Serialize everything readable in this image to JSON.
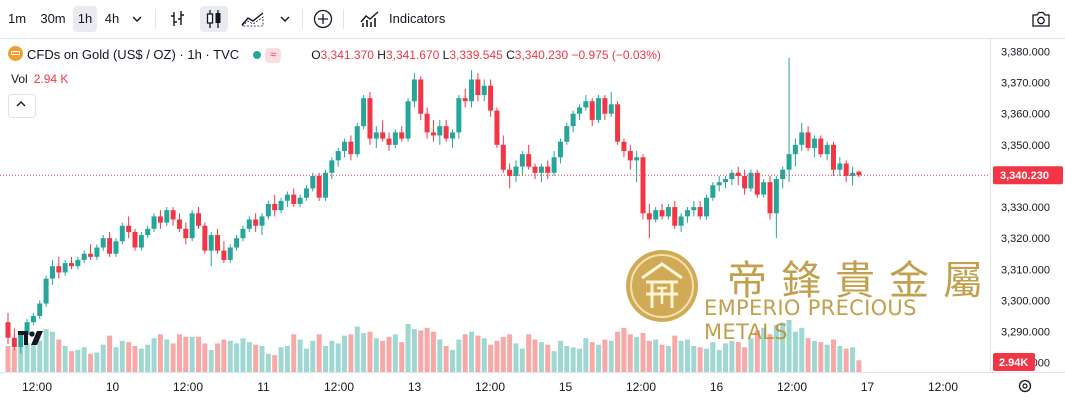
{
  "toolbar": {
    "intervals": [
      "1m",
      "30m",
      "1h",
      "4h"
    ],
    "active_interval": "1h",
    "indicators_label": "Indicators",
    "icons": [
      "chevron-down-icon",
      "bar-style-icon",
      "candle-style-icon",
      "area-style-icon",
      "add-compare-icon",
      "indicators-icon",
      "camera-icon"
    ]
  },
  "legend": {
    "symbol": "CFDs on Gold (US$ / OZ) · 1h · TVC",
    "badge": "≈",
    "o_label": "O",
    "o": "3,341.370",
    "h_label": "H",
    "h": "3,341.670",
    "l_label": "L",
    "l": "3,339.545",
    "c_label": "C",
    "c": "3,340.230",
    "change": "−0.975 (−0.03%)",
    "vol_label": "Vol",
    "vol_value": "2.94 K"
  },
  "price_axis": {
    "ticks": [
      "3,380.000",
      "3,370.000",
      "3,360.000",
      "3,350.000",
      "3,340.000",
      "3,330.000",
      "3,320.000",
      "3,310.000",
      "3,300.000",
      "3,290.000",
      "3,280.000"
    ],
    "last_price_label": "3,340.230",
    "volume_label": "2.94K"
  },
  "time_axis": {
    "labels": [
      "12:00",
      "10",
      "12:00",
      "11",
      "12:00",
      "13",
      "12:00",
      "15",
      "12:00",
      "16",
      "12:00",
      "17",
      "12:00"
    ]
  },
  "watermark": {
    "chinese": "帝鋒貴金屬",
    "english": "EMPERIO PRECIOUS METALS"
  },
  "colors": {
    "up": "#26a69a",
    "down": "#f23645",
    "up_volume": "#9fd8d2",
    "down_volume": "#f7a9a7",
    "gold": "#b8902e"
  },
  "chart_data": {
    "type": "candlestick",
    "title": "CFDs on Gold (US$ / OZ) · 1h · TVC",
    "ylim": [
      3277,
      3384
    ],
    "last_price": 3340.23,
    "x_tick_labels": [
      "12:00",
      "10",
      "12:00",
      "11",
      "12:00",
      "13",
      "12:00",
      "15",
      "12:00",
      "16",
      "12:00",
      "17",
      "12:00"
    ],
    "candles": [
      [
        3293,
        3296,
        3286,
        3288,
        20
      ],
      [
        3288,
        3291,
        3284,
        3285,
        18
      ],
      [
        3285,
        3290,
        3283,
        3289,
        19
      ],
      [
        3289,
        3294,
        3288,
        3293,
        22
      ],
      [
        3293,
        3296,
        3292,
        3295,
        21
      ],
      [
        3295,
        3300,
        3294,
        3299,
        24
      ],
      [
        3299,
        3308,
        3298,
        3307,
        33
      ],
      [
        3307,
        3313,
        3305,
        3311,
        31
      ],
      [
        3311,
        3314,
        3307,
        3309,
        25
      ],
      [
        3309,
        3313,
        3308,
        3312,
        20
      ],
      [
        3312,
        3314,
        3310,
        3311,
        16
      ],
      [
        3311,
        3314,
        3310,
        3313,
        17
      ],
      [
        3313,
        3316,
        3312,
        3315,
        19
      ],
      [
        3315,
        3318,
        3313,
        3314,
        14
      ],
      [
        3314,
        3318,
        3313,
        3317,
        15
      ],
      [
        3317,
        3321,
        3316,
        3320,
        21
      ],
      [
        3320,
        3322,
        3314,
        3315,
        28
      ],
      [
        3315,
        3320,
        3314,
        3319,
        19
      ],
      [
        3319,
        3325,
        3318,
        3324,
        24
      ],
      [
        3324,
        3327,
        3320,
        3322,
        23
      ],
      [
        3322,
        3323,
        3316,
        3317,
        20
      ],
      [
        3317,
        3322,
        3316,
        3321,
        18
      ],
      [
        3321,
        3324,
        3320,
        3323,
        21
      ],
      [
        3323,
        3328,
        3322,
        3327,
        26
      ],
      [
        3327,
        3329,
        3323,
        3325,
        29
      ],
      [
        3325,
        3330,
        3324,
        3329,
        25
      ],
      [
        3329,
        3330,
        3324,
        3326,
        22
      ],
      [
        3326,
        3328,
        3322,
        3323,
        29
      ],
      [
        3323,
        3325,
        3318,
        3320,
        27
      ],
      [
        3320,
        3329,
        3319,
        3328,
        27
      ],
      [
        3328,
        3330,
        3323,
        3324,
        27
      ],
      [
        3324,
        3325,
        3315,
        3316,
        22
      ],
      [
        3316,
        3322,
        3311,
        3321,
        17
      ],
      [
        3321,
        3323,
        3315,
        3316,
        22
      ],
      [
        3316,
        3319,
        3312,
        3313,
        25
      ],
      [
        3313,
        3318,
        3312,
        3317,
        24
      ],
      [
        3317,
        3321,
        3316,
        3320,
        22
      ],
      [
        3320,
        3324,
        3319,
        3323,
        26
      ],
      [
        3323,
        3327,
        3322,
        3326,
        23
      ],
      [
        3326,
        3328,
        3322,
        3324,
        21
      ],
      [
        3324,
        3328,
        3321,
        3327,
        20
      ],
      [
        3327,
        3332,
        3326,
        3331,
        14
      ],
      [
        3331,
        3334,
        3327,
        3329,
        13
      ],
      [
        3329,
        3333,
        3328,
        3332,
        19
      ],
      [
        3332,
        3335,
        3330,
        3334,
        20
      ],
      [
        3334,
        3336,
        3330,
        3331,
        29
      ],
      [
        3331,
        3334,
        3330,
        3333,
        25
      ],
      [
        3333,
        3337,
        3332,
        3336,
        18
      ],
      [
        3336,
        3341,
        3335,
        3340,
        24
      ],
      [
        3340,
        3341,
        3332,
        3333,
        29
      ],
      [
        3333,
        3342,
        3332,
        3341,
        20
      ],
      [
        3341,
        3346,
        3339,
        3345,
        24
      ],
      [
        3345,
        3349,
        3343,
        3348,
        22
      ],
      [
        3348,
        3352,
        3346,
        3351,
        28
      ],
      [
        3351,
        3353,
        3345,
        3347,
        29
      ],
      [
        3347,
        3357,
        3346,
        3356,
        35
      ],
      [
        3356,
        3366,
        3355,
        3365,
        30
      ],
      [
        3365,
        3367,
        3350,
        3352,
        31
      ],
      [
        3352,
        3356,
        3349,
        3354,
        26
      ],
      [
        3354,
        3358,
        3351,
        3352,
        24
      ],
      [
        3352,
        3354,
        3348,
        3350,
        27
      ],
      [
        3350,
        3355,
        3349,
        3354,
        29
      ],
      [
        3354,
        3356,
        3351,
        3352,
        23
      ],
      [
        3352,
        3365,
        3351,
        3364,
        37
      ],
      [
        3364,
        3373,
        3362,
        3371,
        33
      ],
      [
        3371,
        3372,
        3358,
        3360,
        32
      ],
      [
        3360,
        3362,
        3352,
        3354,
        34
      ],
      [
        3354,
        3358,
        3351,
        3353,
        31
      ],
      [
        3353,
        3358,
        3350,
        3356,
        25
      ],
      [
        3356,
        3358,
        3351,
        3352,
        20
      ],
      [
        3352,
        3355,
        3349,
        3354,
        17
      ],
      [
        3354,
        3366,
        3352,
        3365,
        25
      ],
      [
        3365,
        3368,
        3362,
        3364,
        29
      ],
      [
        3364,
        3374,
        3362,
        3371,
        31
      ],
      [
        3371,
        3373,
        3364,
        3366,
        28
      ],
      [
        3366,
        3371,
        3364,
        3369,
        26
      ],
      [
        3369,
        3371,
        3359,
        3361,
        21
      ],
      [
        3361,
        3362,
        3349,
        3350,
        24
      ],
      [
        3350,
        3353,
        3341,
        3342,
        27
      ],
      [
        3342,
        3344,
        3336,
        3340,
        29
      ],
      [
        3340,
        3345,
        3338,
        3343,
        22
      ],
      [
        3343,
        3348,
        3340,
        3347,
        18
      ],
      [
        3347,
        3350,
        3342,
        3343,
        29
      ],
      [
        3343,
        3344,
        3339,
        3341,
        25
      ],
      [
        3341,
        3344,
        3338,
        3343,
        23
      ],
      [
        3343,
        3345,
        3339,
        3341,
        21
      ],
      [
        3341,
        3348,
        3340,
        3346,
        16
      ],
      [
        3346,
        3352,
        3344,
        3351,
        24
      ],
      [
        3351,
        3357,
        3350,
        3356,
        20
      ],
      [
        3356,
        3361,
        3354,
        3360,
        19
      ],
      [
        3360,
        3363,
        3358,
        3362,
        18
      ],
      [
        3362,
        3366,
        3361,
        3364,
        26
      ],
      [
        3364,
        3365,
        3356,
        3358,
        23
      ],
      [
        3358,
        3366,
        3357,
        3365,
        21
      ],
      [
        3365,
        3366,
        3358,
        3360,
        25
      ],
      [
        3360,
        3367,
        3359,
        3363,
        24
      ],
      [
        3363,
        3364,
        3350,
        3351,
        31
      ],
      [
        3351,
        3352,
        3346,
        3348,
        34
      ],
      [
        3348,
        3350,
        3342,
        3345,
        29
      ],
      [
        3345,
        3348,
        3338,
        3346,
        27
      ],
      [
        3346,
        3347,
        3326,
        3328,
        30
      ],
      [
        3328,
        3331,
        3320,
        3326,
        24
      ],
      [
        3326,
        3330,
        3325,
        3329,
        25
      ],
      [
        3329,
        3331,
        3326,
        3327,
        21
      ],
      [
        3327,
        3331,
        3326,
        3330,
        20
      ],
      [
        3330,
        3332,
        3323,
        3324,
        28
      ],
      [
        3324,
        3328,
        3322,
        3327,
        24
      ],
      [
        3327,
        3330,
        3325,
        3329,
        25
      ],
      [
        3329,
        3332,
        3327,
        3330,
        20
      ],
      [
        3330,
        3332,
        3326,
        3327,
        19
      ],
      [
        3327,
        3334,
        3326,
        3333,
        18
      ],
      [
        3333,
        3338,
        3332,
        3337,
        23
      ],
      [
        3337,
        3340,
        3335,
        3338,
        17
      ],
      [
        3338,
        3340,
        3336,
        3339,
        22
      ],
      [
        3339,
        3342,
        3337,
        3341,
        24
      ],
      [
        3341,
        3343,
        3337,
        3340,
        23
      ],
      [
        3340,
        3342,
        3334,
        3336,
        19
      ],
      [
        3336,
        3342,
        3335,
        3341,
        26
      ],
      [
        3341,
        3342,
        3333,
        3334,
        32
      ],
      [
        3334,
        3339,
        3333,
        3338,
        34
      ],
      [
        3338,
        3340,
        3326,
        3328,
        29
      ],
      [
        3328,
        3340,
        3320,
        3339,
        36
      ],
      [
        3339,
        3343,
        3336,
        3342,
        38
      ],
      [
        3342,
        3378,
        3338,
        3347,
        40
      ],
      [
        3347,
        3352,
        3343,
        3350,
        31
      ],
      [
        3350,
        3357,
        3348,
        3354,
        34
      ],
      [
        3354,
        3356,
        3348,
        3349,
        26
      ],
      [
        3349,
        3353,
        3346,
        3352,
        24
      ],
      [
        3352,
        3353,
        3346,
        3347,
        23
      ],
      [
        3347,
        3351,
        3345,
        3350,
        21
      ],
      [
        3350,
        3351,
        3340,
        3342,
        25
      ],
      [
        3342,
        3346,
        3340,
        3344,
        20
      ],
      [
        3344,
        3345,
        3338,
        3340,
        18
      ],
      [
        3340,
        3343,
        3337,
        3341,
        19
      ],
      [
        3341.37,
        3341.67,
        3339.545,
        3340.23,
        9
      ]
    ]
  }
}
